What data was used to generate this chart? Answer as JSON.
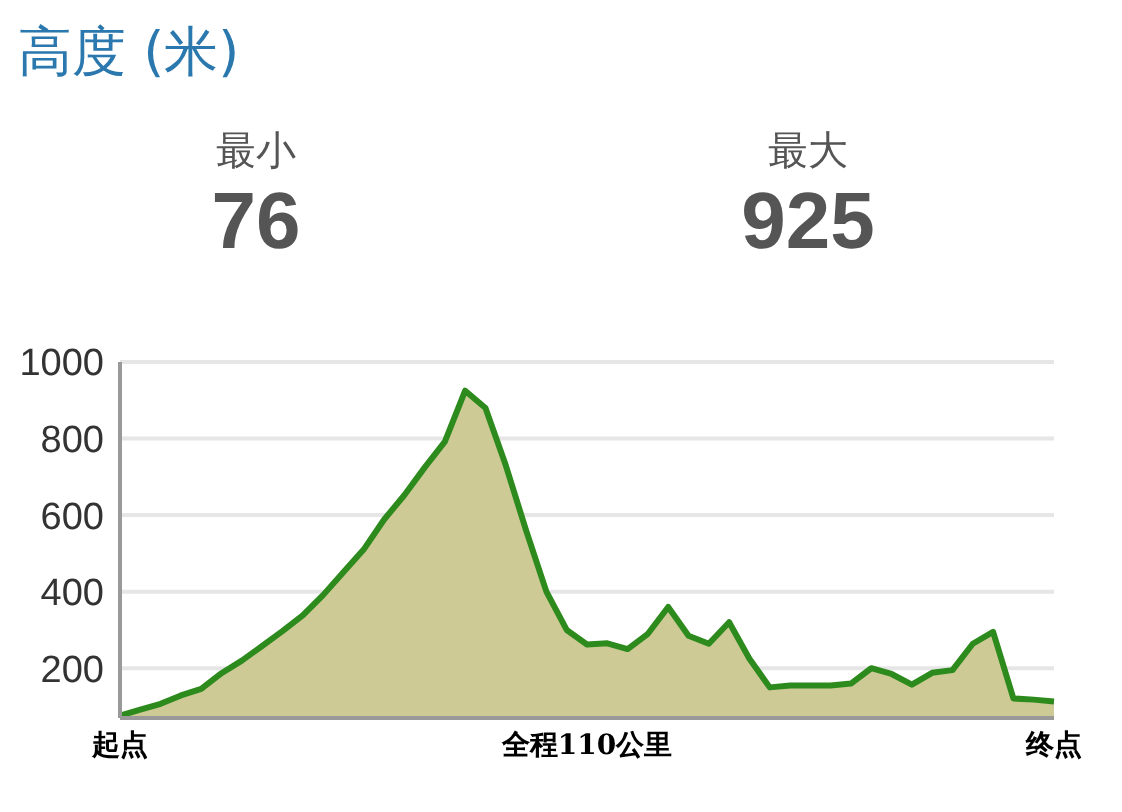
{
  "chart_data": {
    "type": "area",
    "title": "高度 (米)",
    "annotations": [
      "最小",
      "76",
      "最大",
      "925"
    ],
    "categories": [
      "起点",
      null,
      null,
      null,
      null,
      null,
      null,
      null,
      null,
      null,
      null,
      null,
      null,
      null,
      null,
      null,
      null,
      null,
      null,
      null,
      null,
      null,
      null,
      "全程110公里",
      null,
      null,
      null,
      null,
      null,
      null,
      null,
      null,
      null,
      null,
      null,
      null,
      null,
      null,
      null,
      null,
      null,
      null,
      null,
      null,
      null,
      null,
      "终点"
    ],
    "series": [
      {
        "color": "#2d8a1c",
        "values": [
          76,
          92,
          107,
          129,
          146,
          187,
          220,
          258,
          297,
          338,
          391,
          451,
          510,
          588,
          652,
          724,
          792,
          925,
          880,
          730,
          560,
          400,
          300,
          262,
          265,
          250,
          290,
          360,
          285,
          264,
          320,
          225,
          150,
          155,
          155,
          155,
          160,
          200,
          185,
          157,
          188,
          195,
          264,
          295,
          121,
          118,
          113
        ]
      }
    ],
    "ylim": [
      70,
      1000
    ],
    "yticks": [
      200,
      400,
      600,
      800,
      1000
    ],
    "grid": "y"
  }
}
